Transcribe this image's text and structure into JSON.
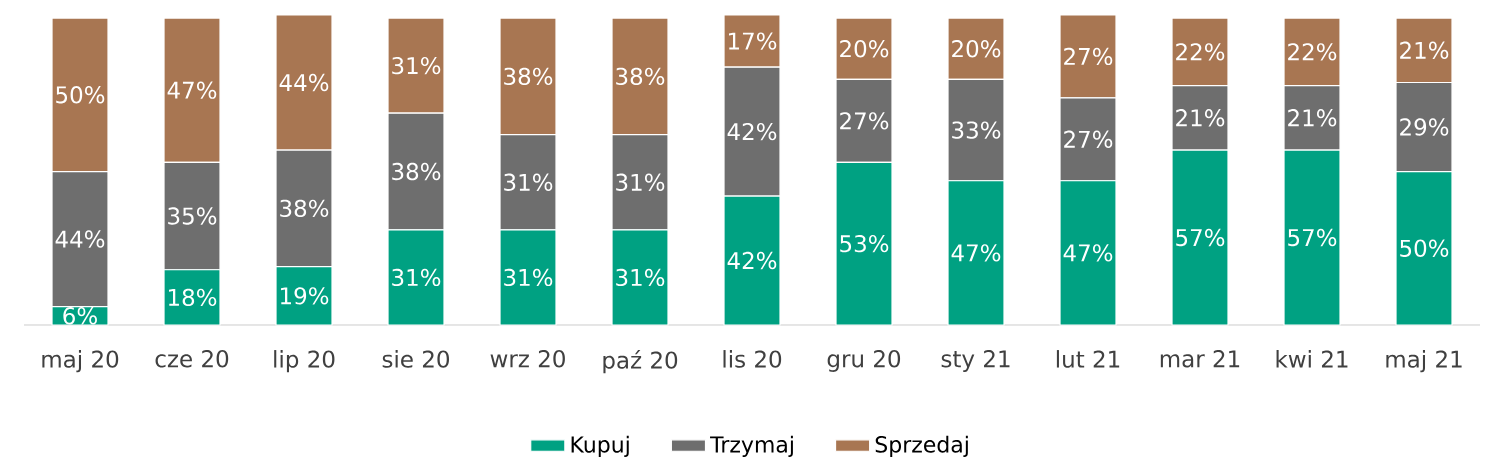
{
  "chart_data": {
    "type": "bar",
    "stacked": true,
    "legend": "bottom",
    "tick_labels": "x",
    "categories": [
      "maj 20",
      "cze 20",
      "lip 20",
      "sie 20",
      "wrz 20",
      "paź 20",
      "lis 20",
      "gru 20",
      "sty 21",
      "lut 21",
      "mar 21",
      "kwi 21",
      "maj 21"
    ],
    "series": [
      {
        "name": "Kupuj",
        "color": "#00a182",
        "values": [
          6,
          18,
          19,
          31,
          31,
          31,
          42,
          53,
          47,
          47,
          57,
          57,
          50
        ],
        "value_labels": [
          "6%",
          "18%",
          "19%",
          "31%",
          "31%",
          "31%",
          "42%",
          "53%",
          "47%",
          "47%",
          "57%",
          "57%",
          "50%"
        ]
      },
      {
        "name": "Trzymaj",
        "color": "#6e6e6e",
        "values": [
          44,
          35,
          38,
          38,
          31,
          31,
          42,
          27,
          33,
          27,
          21,
          21,
          29
        ],
        "value_labels": [
          "44%",
          "35%",
          "38%",
          "38%",
          "31%",
          "31%",
          "42%",
          "27%",
          "33%",
          "27%",
          "21%",
          "21%",
          "29%"
        ]
      },
      {
        "name": "Sprzedaj",
        "color": "#a87652",
        "values": [
          50,
          47,
          44,
          31,
          38,
          38,
          17,
          20,
          20,
          27,
          22,
          22,
          21
        ],
        "value_labels": [
          "50%",
          "47%",
          "44%",
          "31%",
          "38%",
          "38%",
          "17%",
          "20%",
          "20%",
          "27%",
          "22%",
          "22%",
          "21%"
        ]
      }
    ]
  }
}
